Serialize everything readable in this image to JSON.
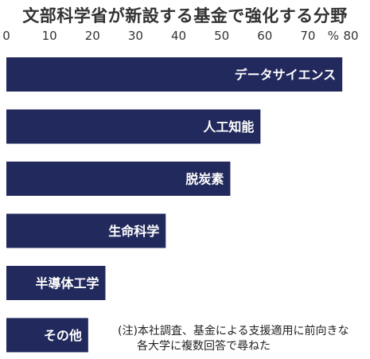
{
  "chart_data": {
    "type": "bar",
    "orientation": "horizontal",
    "title": "文部科学省が新設する基金で強化する分野",
    "unit": "%",
    "xlim": [
      0,
      80
    ],
    "ticks": [
      0,
      10,
      20,
      30,
      40,
      50,
      60,
      70,
      80
    ],
    "categories": [
      "データサイエンス",
      "人工知能",
      "脱炭素",
      "生命科学",
      "半導体工学",
      "その他"
    ],
    "values": [
      78,
      59,
      52,
      37,
      23,
      19
    ],
    "bar_color": "#22295c",
    "label_color": "#ffffff",
    "grid": false,
    "note_line1": "(注)本社調査、基金による支援適用に前向きな",
    "note_line2": "各大学に複数回答で尋ねた"
  }
}
